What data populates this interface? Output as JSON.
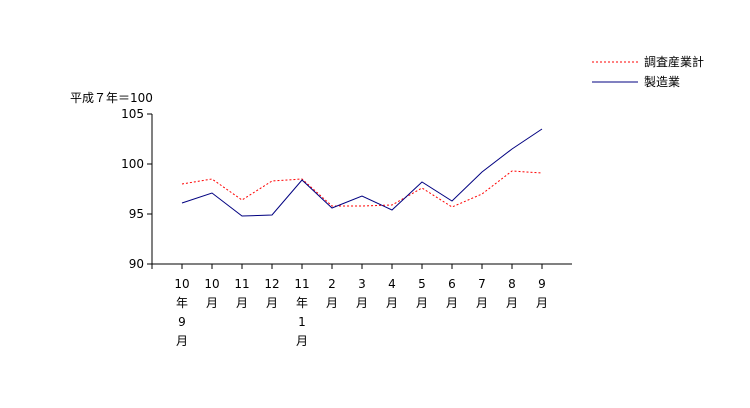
{
  "chart_data": {
    "type": "line",
    "ylabel": "平成７年＝100",
    "ylim": [
      90,
      105
    ],
    "yticks": [
      90,
      95,
      100,
      105
    ],
    "grid": false,
    "legend_position": "top-right",
    "categories": [
      {
        "label": "10年9月",
        "lines": [
          "10",
          "年",
          "9",
          "月"
        ]
      },
      {
        "label": "10月",
        "lines": [
          "10",
          "月"
        ]
      },
      {
        "label": "11月",
        "lines": [
          "11",
          "月"
        ]
      },
      {
        "label": "12月",
        "lines": [
          "12",
          "月"
        ]
      },
      {
        "label": "11年1月",
        "lines": [
          "11",
          "年",
          "1",
          "月"
        ]
      },
      {
        "label": "2月",
        "lines": [
          "2",
          "月"
        ]
      },
      {
        "label": "3月",
        "lines": [
          "3",
          "月"
        ]
      },
      {
        "label": "4月",
        "lines": [
          "4",
          "月"
        ]
      },
      {
        "label": "5月",
        "lines": [
          "5",
          "月"
        ]
      },
      {
        "label": "6月",
        "lines": [
          "6",
          "月"
        ]
      },
      {
        "label": "7月",
        "lines": [
          "7",
          "月"
        ]
      },
      {
        "label": "8月",
        "lines": [
          "8",
          "月"
        ]
      },
      {
        "label": "9月",
        "lines": [
          "9",
          "月"
        ]
      }
    ],
    "series": [
      {
        "name": "調査産業計",
        "color": "#ff0000",
        "style": "dotted",
        "values": [
          98.0,
          98.5,
          96.4,
          98.3,
          98.5,
          95.8,
          95.8,
          95.9,
          97.6,
          95.7,
          97.0,
          99.3,
          99.1
        ]
      },
      {
        "name": "製造業",
        "color": "#000080",
        "style": "solid",
        "values": [
          96.1,
          97.1,
          94.8,
          94.9,
          98.4,
          95.6,
          96.8,
          95.4,
          98.2,
          96.3,
          99.2,
          101.5,
          103.5
        ]
      }
    ]
  }
}
